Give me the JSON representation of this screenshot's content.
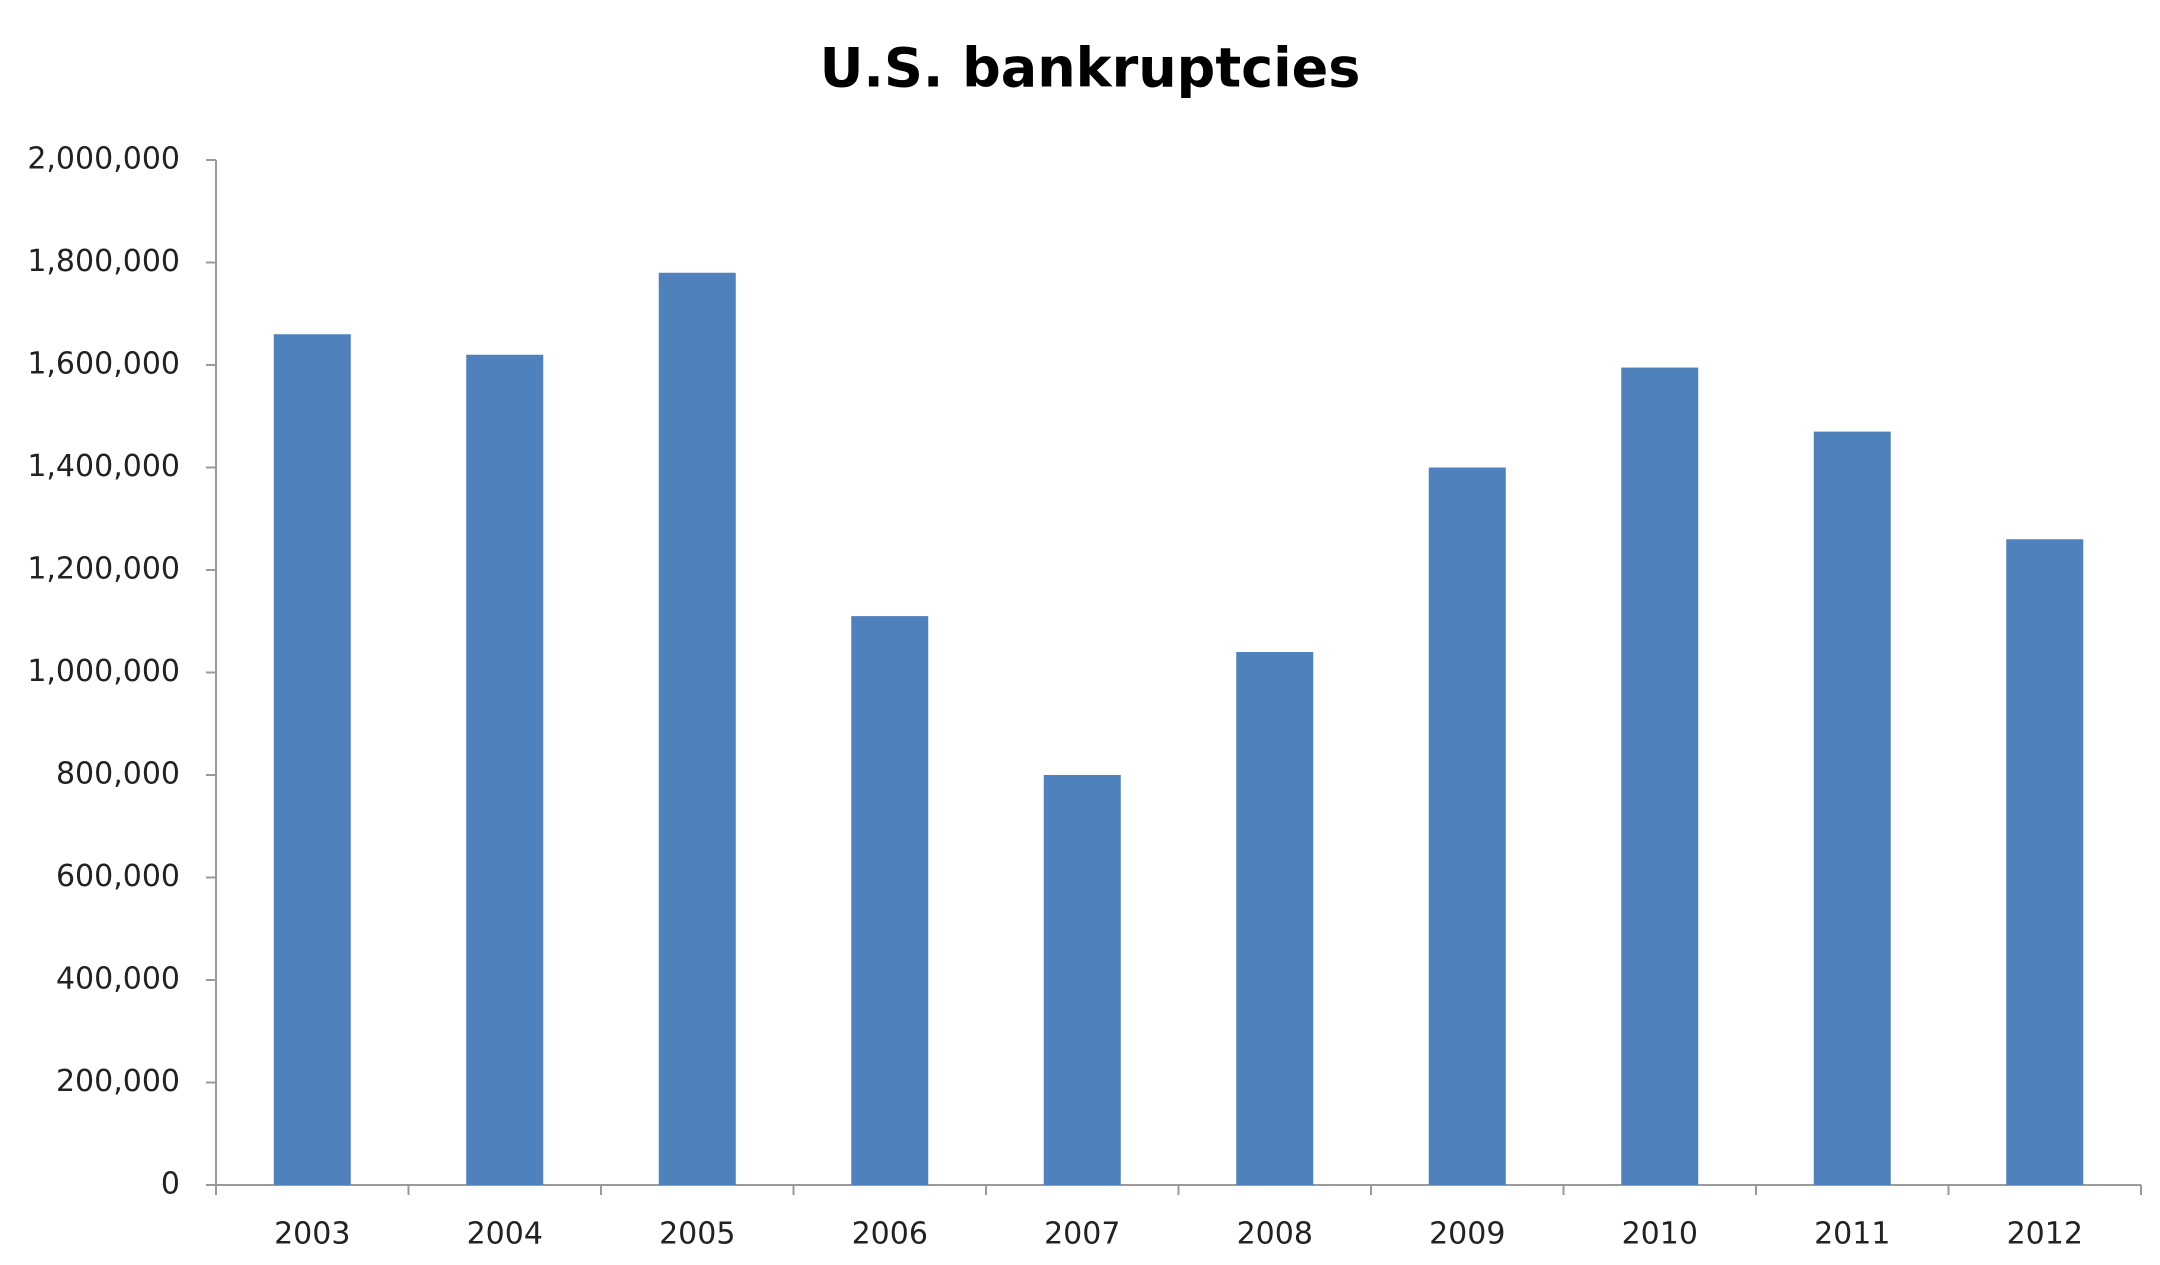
{
  "chart_data": {
    "type": "bar",
    "title": "U.S. bankruptcies",
    "categories": [
      "2003",
      "2004",
      "2005",
      "2006",
      "2007",
      "2008",
      "2009",
      "2010",
      "2011",
      "2012"
    ],
    "values": [
      1660000,
      1620000,
      1780000,
      1110000,
      800000,
      1040000,
      1400000,
      1595000,
      1470000,
      1260000
    ],
    "color": "#4f81bd",
    "ylim": [
      0,
      2000000
    ],
    "yticks": [
      0,
      {
        "value": 200000,
        "label": "200,000"
      },
      {
        "value": 400000,
        "label": "400,000"
      },
      {
        "value": 600000,
        "label": "600,000"
      },
      {
        "value": 800000,
        "label": "800,000"
      },
      {
        "value": 1000000,
        "label": "1,000,000"
      },
      {
        "value": 1200000,
        "label": "1,200,000"
      },
      {
        "value": 1400000,
        "label": "1,400,000"
      },
      {
        "value": 1600000,
        "label": "1,600,000"
      },
      {
        "value": 1800000,
        "label": "1,800,000"
      },
      {
        "value": 2000000,
        "label": "2,000,000"
      }
    ],
    "grid": false
  }
}
